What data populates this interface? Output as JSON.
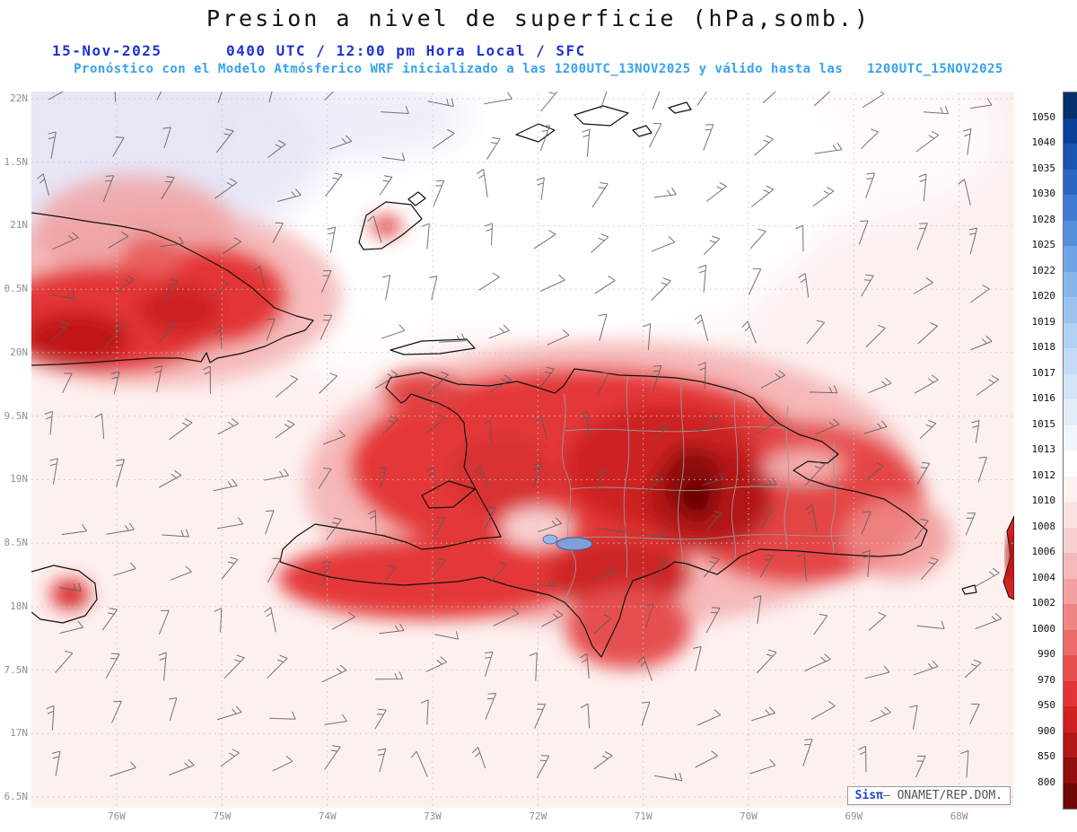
{
  "header": {
    "title": "Presion a nivel de superficie (hPa,somb.)",
    "date": "15-Nov-2025",
    "time_line": "0400 UTC / 12:00 pm Hora Local / SFC",
    "forecast_line": "Pronóstico con el Modelo Atmósferico WRF inicializado a las 1200UTC_13NOV2025 y válido hasta las   1200UTC_15NOV2025"
  },
  "map": {
    "lat_labels": [
      "22N",
      "1.5N",
      "21N",
      "0.5N",
      "20N",
      "9.5N",
      "19N",
      "8.5N",
      "18N",
      "7.5N",
      "17N",
      "6.5N"
    ],
    "lon_labels": [
      "76W",
      "75W",
      "74W",
      "73W",
      "72W",
      "71W",
      "70W",
      "69W",
      "68W"
    ],
    "watermark": {
      "prefix": "Sisπ",
      "suffix": "– ONAMET/REP.DOM."
    }
  },
  "colorbar": {
    "unit": "hPa",
    "labels": [
      "1050",
      "1040",
      "1035",
      "1030",
      "1028",
      "1025",
      "1022",
      "1020",
      "1019",
      "1018",
      "1017",
      "1016",
      "1015",
      "1013",
      "1012",
      "1010",
      "1008",
      "1006",
      "1004",
      "1002",
      "1000",
      "990",
      "970",
      "950",
      "900",
      "850",
      "800"
    ],
    "segment_colors": [
      "#062f6d",
      "#0b4199",
      "#1a55b0",
      "#2b66c2",
      "#3e7ad0",
      "#5590dc",
      "#6fa5e6",
      "#87b6ec",
      "#9cc3f0",
      "#b0d0f4",
      "#c3dbf6",
      "#d4e5f8",
      "#e3edfa",
      "#f1f5fc",
      "#ffffff",
      "#fdf1f1",
      "#fbe2e2",
      "#f9cfcf",
      "#f6b9b9",
      "#f3a0a0",
      "#ef8585",
      "#ec6a6a",
      "#e74f4f",
      "#e23434",
      "#d02020",
      "#b31616",
      "#930e0e",
      "#6f0707"
    ]
  },
  "colors": {
    "header_blue": "#2233cc",
    "forecast_cyan": "#35a2ef",
    "high_pressure_blue": "#e4e4f6",
    "low_pressure_red": "#e23434",
    "coastline": "#111111",
    "grid_gray": "#c5c5c5",
    "axis_label_gray": "#909090"
  }
}
